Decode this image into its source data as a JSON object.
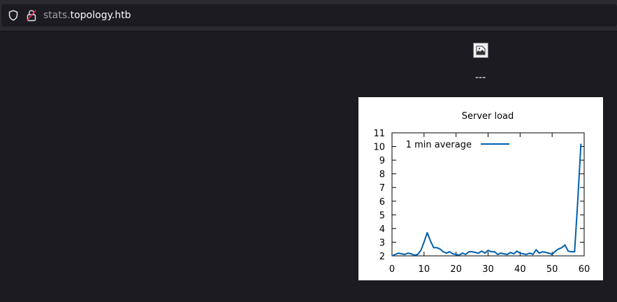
{
  "browser": {
    "url_subdomain": "stats.",
    "url_domain": "topology.htb",
    "shield_icon": "shield-icon",
    "lock_icon": "insecure-lock-icon"
  },
  "page": {
    "broken_image_icon": "broken-image-icon",
    "separator_text": "---"
  },
  "chart_data": {
    "type": "line",
    "title": "Server load",
    "xlabel": "",
    "ylabel": "",
    "xlim": [
      0,
      60
    ],
    "ylim": [
      2,
      11
    ],
    "xticks": [
      "0",
      "10",
      "20",
      "30",
      "40",
      "50",
      "60"
    ],
    "yticks": [
      "2",
      "3",
      "4",
      "5",
      "6",
      "7",
      "8",
      "9",
      "10",
      "11"
    ],
    "legend_position": "top-left",
    "grid": false,
    "series": [
      {
        "name": "1 min average",
        "color": "#0060ad",
        "x": [
          0,
          1,
          2,
          3,
          4,
          5,
          6,
          7,
          8,
          9,
          10,
          11,
          12,
          13,
          14,
          15,
          16,
          17,
          18,
          19,
          20,
          21,
          22,
          23,
          24,
          25,
          26,
          27,
          28,
          29,
          30,
          31,
          32,
          33,
          34,
          35,
          36,
          37,
          38,
          39,
          40,
          41,
          42,
          43,
          44,
          45,
          46,
          47,
          48,
          49,
          50,
          51,
          52,
          53,
          54,
          55,
          56,
          57,
          58,
          59
        ],
        "values": [
          2.0,
          2.1,
          2.2,
          2.15,
          2.1,
          2.2,
          2.15,
          2.05,
          2.1,
          2.4,
          3.0,
          3.7,
          3.1,
          2.6,
          2.6,
          2.5,
          2.3,
          2.2,
          2.3,
          2.15,
          2.1,
          2.05,
          2.2,
          2.1,
          2.3,
          2.3,
          2.25,
          2.2,
          2.35,
          2.2,
          2.4,
          2.3,
          2.3,
          2.1,
          2.2,
          2.15,
          2.1,
          2.25,
          2.15,
          2.35,
          2.2,
          2.15,
          2.1,
          2.2,
          2.1,
          2.45,
          2.2,
          2.3,
          2.25,
          2.2,
          2.1,
          2.35,
          2.5,
          2.6,
          2.8,
          2.35,
          2.3,
          2.3,
          6.0,
          10.2
        ]
      }
    ]
  }
}
